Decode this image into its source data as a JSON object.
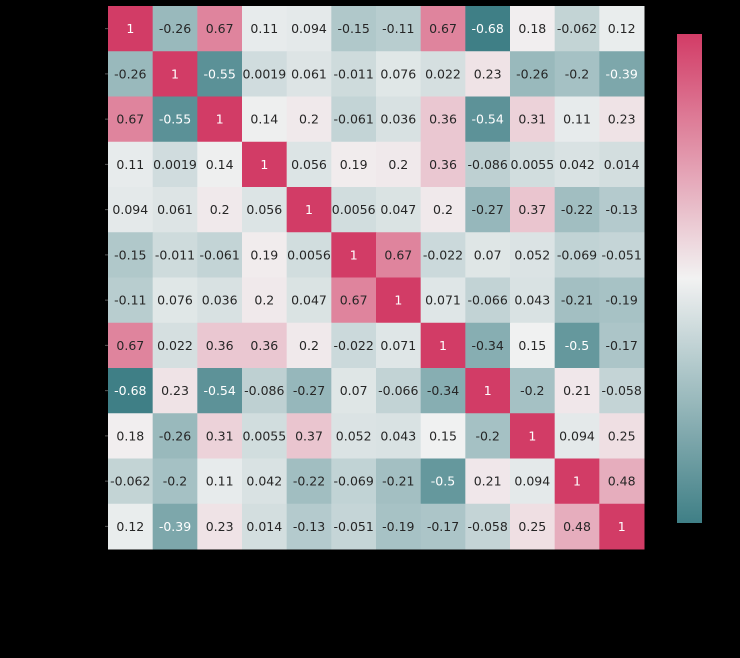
{
  "chart_data": {
    "type": "heatmap",
    "title": "",
    "xlabel": "",
    "ylabel": "",
    "row_labels": [],
    "col_labels": [],
    "color_range": [
      -0.68,
      1
    ],
    "colormap": {
      "negative": "#3f7f86",
      "center": "#f2f2f2",
      "positive": "#d23c66"
    },
    "colorbar": {
      "placement": "right",
      "tick_labels_visible": false
    },
    "values": [
      [
        1,
        -0.26,
        0.67,
        0.11,
        0.094,
        -0.15,
        -0.11,
        0.67,
        -0.68,
        0.18,
        -0.062,
        0.12
      ],
      [
        -0.26,
        1,
        -0.55,
        0.0019,
        0.061,
        -0.011,
        0.076,
        0.022,
        0.23,
        -0.26,
        -0.2,
        -0.39
      ],
      [
        0.67,
        -0.55,
        1,
        0.14,
        0.2,
        -0.061,
        0.036,
        0.36,
        -0.54,
        0.31,
        0.11,
        0.23
      ],
      [
        0.11,
        0.0019,
        0.14,
        1,
        0.056,
        0.19,
        0.2,
        0.36,
        -0.086,
        0.0055,
        0.042,
        0.014
      ],
      [
        0.094,
        0.061,
        0.2,
        0.056,
        1,
        0.0056,
        0.047,
        0.2,
        -0.27,
        0.37,
        -0.22,
        -0.13
      ],
      [
        -0.15,
        -0.011,
        -0.061,
        0.19,
        0.0056,
        1,
        0.67,
        -0.022,
        0.07,
        0.052,
        -0.069,
        -0.051
      ],
      [
        -0.11,
        0.076,
        0.036,
        0.2,
        0.047,
        0.67,
        1,
        0.071,
        -0.066,
        0.043,
        -0.21,
        -0.19
      ],
      [
        0.67,
        0.022,
        0.36,
        0.36,
        0.2,
        -0.022,
        0.071,
        1,
        -0.34,
        0.15,
        -0.5,
        -0.17
      ],
      [
        -0.68,
        0.23,
        -0.54,
        -0.086,
        -0.27,
        0.07,
        -0.066,
        -0.34,
        1,
        -0.2,
        0.21,
        -0.058
      ],
      [
        0.18,
        -0.26,
        0.31,
        0.0055,
        0.37,
        0.052,
        0.043,
        0.15,
        -0.2,
        1,
        0.094,
        0.25
      ],
      [
        -0.062,
        -0.2,
        0.11,
        0.042,
        -0.22,
        -0.069,
        -0.21,
        -0.5,
        0.21,
        0.094,
        1,
        0.48
      ],
      [
        0.12,
        -0.39,
        0.23,
        0.014,
        -0.13,
        -0.051,
        -0.19,
        -0.17,
        -0.058,
        0.25,
        0.48,
        1
      ]
    ]
  }
}
